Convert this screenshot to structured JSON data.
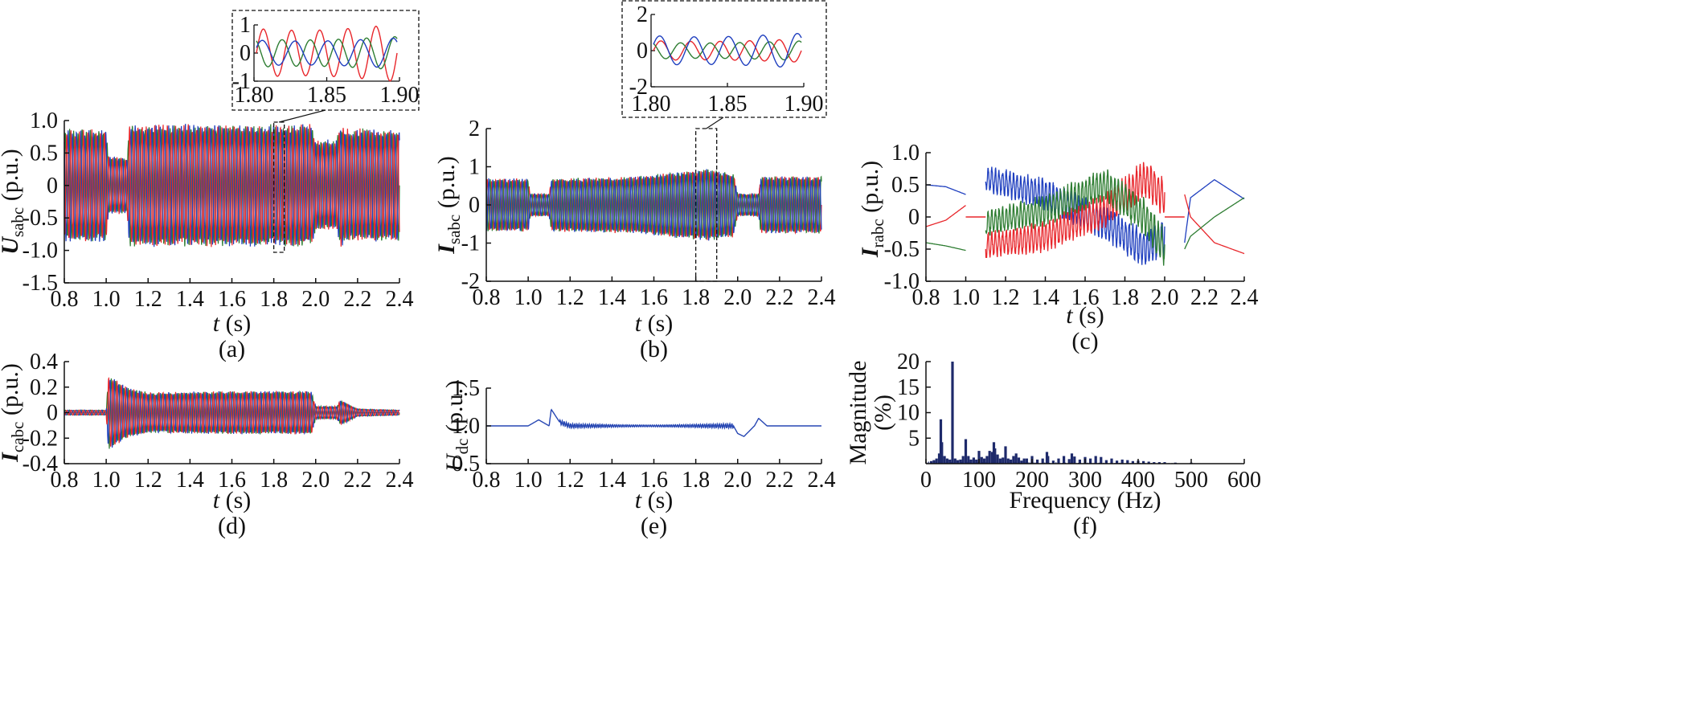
{
  "colors": {
    "phase_a": "#e8262b",
    "phase_b": "#2e7d32",
    "phase_c": "#1f3fbf",
    "dc": "#2747b3",
    "spectrum": "#1e2a6b",
    "axis": "#111111"
  },
  "chart_data": [
    {
      "id": "a",
      "type": "line",
      "caption": "(a)",
      "ylabel_main": "U",
      "ylabel_sub": "sabc",
      "ylabel_unit": " (p.u.)",
      "xlabel_main": "t",
      "xlabel_unit": " (s)",
      "xlim": [
        0.8,
        2.4
      ],
      "ylim": [
        -1.5,
        1.0
      ],
      "xticks": [
        "0.8",
        "1.0",
        "1.2",
        "1.4",
        "1.6",
        "1.8",
        "2.0",
        "2.2",
        "2.4"
      ],
      "yticks": [
        "1.0",
        "0.5",
        "0",
        "-0.5",
        "-1.0",
        "-1.5"
      ],
      "series": [
        {
          "color": "phase_b"
        },
        {
          "color": "phase_c"
        },
        {
          "color": "phase_a"
        }
      ],
      "envelope": [
        [
          0.8,
          0.88
        ],
        [
          1.0,
          0.88
        ],
        [
          1.01,
          0.45
        ],
        [
          1.1,
          0.45
        ],
        [
          1.11,
          0.95
        ],
        [
          1.5,
          0.95
        ],
        [
          1.98,
          0.95
        ],
        [
          2.0,
          0.7
        ],
        [
          2.1,
          0.72
        ],
        [
          2.12,
          0.98
        ],
        [
          2.14,
          0.88
        ],
        [
          2.4,
          0.88
        ]
      ],
      "inset": {
        "xlim": [
          1.8,
          1.9
        ],
        "ylim": [
          -1,
          1
        ],
        "xticks": [
          "1.80",
          "1.85",
          "1.90"
        ],
        "yticks": [
          "1",
          "0",
          "-1"
        ],
        "amplitudes": {
          "phase_a": 0.95,
          "phase_b": 0.55,
          "phase_c": 0.5
        }
      }
    },
    {
      "id": "b",
      "type": "line",
      "caption": "(b)",
      "ylabel_main": "I",
      "ylabel_sub": "sabc",
      "ylabel_unit": " (p.u.)",
      "xlabel_main": "t",
      "xlabel_unit": " (s)",
      "xlim": [
        0.8,
        2.4
      ],
      "ylim": [
        -2,
        2
      ],
      "xticks": [
        "0.8",
        "1.0",
        "1.2",
        "1.4",
        "1.6",
        "1.8",
        "2.0",
        "2.2",
        "2.4"
      ],
      "yticks": [
        "2",
        "1",
        "0",
        "-1",
        "-2"
      ],
      "series": [
        {
          "color": "phase_a"
        },
        {
          "color": "phase_b"
        },
        {
          "color": "phase_c"
        }
      ],
      "envelope": [
        [
          0.8,
          0.7
        ],
        [
          1.0,
          0.7
        ],
        [
          1.01,
          0.3
        ],
        [
          1.1,
          0.3
        ],
        [
          1.11,
          0.7
        ],
        [
          1.5,
          0.75
        ],
        [
          1.85,
          0.95
        ],
        [
          1.98,
          0.85
        ],
        [
          2.0,
          0.3
        ],
        [
          2.1,
          0.3
        ],
        [
          2.11,
          0.75
        ],
        [
          2.4,
          0.75
        ]
      ],
      "inset": {
        "xlim": [
          1.8,
          1.9
        ],
        "ylim": [
          -2,
          2
        ],
        "xticks": [
          "1.80",
          "1.85",
          "1.90"
        ],
        "yticks": [
          "2",
          "0",
          "-2"
        ],
        "amplitudes": {
          "phase_a": 0.6,
          "phase_b": 0.5,
          "phase_c": 0.9
        }
      }
    },
    {
      "id": "c",
      "type": "line",
      "caption": "(c)",
      "ylabel_main": "I",
      "ylabel_sub": "rabc",
      "ylabel_unit": " (p.u.)",
      "xlabel_main": "t",
      "xlabel_unit": " (s)",
      "xlim": [
        0.8,
        2.4
      ],
      "ylim": [
        -1.0,
        1.0
      ],
      "xticks": [
        "0.8",
        "1.0",
        "1.2",
        "1.4",
        "1.6",
        "1.8",
        "2.0",
        "2.2",
        "2.4"
      ],
      "yticks": [
        "1.0",
        "0.5",
        "0",
        "-0.5",
        "-1.0"
      ],
      "series": [
        {
          "color": "phase_c",
          "segment1": [
            [
              0.8,
              0.5
            ],
            [
              0.9,
              0.47
            ],
            [
              1.0,
              0.35
            ]
          ],
          "segment2": [
            [
              1.1,
              0.6
            ],
            [
              1.4,
              0.35
            ],
            [
              1.7,
              -0.1
            ],
            [
              1.9,
              -0.5
            ],
            [
              2.0,
              -0.3
            ]
          ],
          "segment3": [
            [
              2.1,
              -0.4
            ],
            [
              2.13,
              0.3
            ],
            [
              2.25,
              0.58
            ],
            [
              2.4,
              0.28
            ]
          ]
        },
        {
          "color": "phase_a",
          "segment1": [
            [
              0.8,
              -0.15
            ],
            [
              0.9,
              -0.05
            ],
            [
              1.0,
              0.18
            ]
          ],
          "segment2": [
            [
              1.1,
              -0.45
            ],
            [
              1.4,
              -0.3
            ],
            [
              1.7,
              0.1
            ],
            [
              1.9,
              0.6
            ],
            [
              2.0,
              0.3
            ]
          ],
          "segment3": [
            [
              2.1,
              0.35
            ],
            [
              2.13,
              0.0
            ],
            [
              2.25,
              -0.4
            ],
            [
              2.4,
              -0.57
            ]
          ]
        },
        {
          "color": "phase_b",
          "segment1": [
            [
              0.8,
              -0.4
            ],
            [
              0.9,
              -0.45
            ],
            [
              1.0,
              -0.52
            ]
          ],
          "segment2": [
            [
              1.1,
              -0.1
            ],
            [
              1.4,
              0.1
            ],
            [
              1.7,
              0.5
            ],
            [
              1.9,
              0.0
            ],
            [
              2.0,
              -0.5
            ]
          ],
          "segment3": [
            [
              2.1,
              -0.5
            ],
            [
              2.13,
              -0.3
            ],
            [
              2.25,
              0.0
            ],
            [
              2.4,
              0.3
            ]
          ]
        }
      ]
    },
    {
      "id": "d",
      "type": "line",
      "caption": "(d)",
      "ylabel_main": "I",
      "ylabel_sub": "cabc",
      "ylabel_unit": " (p.u.)",
      "xlabel_main": "t",
      "xlabel_unit": " (s)",
      "xlim": [
        0.8,
        2.4
      ],
      "ylim": [
        -0.4,
        0.4
      ],
      "xticks": [
        "0.8",
        "1.0",
        "1.2",
        "1.4",
        "1.6",
        "1.8",
        "2.0",
        "2.2",
        "2.4"
      ],
      "yticks": [
        "0.4",
        "0.2",
        "0",
        "-0.2",
        "-0.4"
      ],
      "series": [
        {
          "color": "phase_b"
        },
        {
          "color": "phase_c"
        },
        {
          "color": "phase_a"
        }
      ],
      "envelope": [
        [
          0.8,
          0.02
        ],
        [
          1.0,
          0.02
        ],
        [
          1.01,
          0.3
        ],
        [
          1.1,
          0.2
        ],
        [
          1.2,
          0.16
        ],
        [
          1.6,
          0.17
        ],
        [
          1.98,
          0.17
        ],
        [
          2.0,
          0.05
        ],
        [
          2.1,
          0.05
        ],
        [
          2.12,
          0.1
        ],
        [
          2.2,
          0.03
        ],
        [
          2.4,
          0.02
        ]
      ]
    },
    {
      "id": "e",
      "type": "line",
      "caption": "(e)",
      "ylabel_main": "U",
      "ylabel_sub": "dc",
      "ylabel_unit": " (p.u.)",
      "xlabel_main": "t",
      "xlabel_unit": " (s)",
      "xlim": [
        0.8,
        2.4
      ],
      "ylim": [
        0.5,
        1.5
      ],
      "xticks": [
        "0.8",
        "1.0",
        "1.2",
        "1.4",
        "1.6",
        "1.8",
        "2.0",
        "2.2",
        "2.4"
      ],
      "yticks": [
        "1.5",
        "1.0",
        "0.5"
      ],
      "series": [
        {
          "color": "dc",
          "base": [
            [
              0.8,
              1.0
            ],
            [
              1.0,
              1.0
            ],
            [
              1.05,
              1.08
            ],
            [
              1.1,
              1.0
            ],
            [
              1.11,
              1.22
            ],
            [
              1.15,
              1.05
            ],
            [
              1.2,
              1.0
            ],
            [
              1.98,
              1.0
            ],
            [
              2.0,
              0.9
            ],
            [
              2.03,
              0.86
            ],
            [
              2.08,
              1.0
            ],
            [
              2.1,
              1.1
            ],
            [
              2.14,
              1.0
            ],
            [
              2.4,
              1.0
            ]
          ],
          "ripple": 0.06
        }
      ]
    },
    {
      "id": "f",
      "type": "bar",
      "caption": "(f)",
      "ylabel": "Magnitude",
      "ylabel2": "(%)",
      "xlabel": "Frequency (Hz)",
      "xlim": [
        0,
        600
      ],
      "ylim": [
        0,
        20
      ],
      "xticks": [
        "0",
        "100",
        "200",
        "300",
        "400",
        "500",
        "600"
      ],
      "yticks": [
        "20",
        "15",
        "10",
        "5"
      ],
      "freqs": [
        10,
        15,
        20,
        25,
        28,
        30,
        35,
        40,
        45,
        50,
        55,
        60,
        65,
        70,
        75,
        80,
        85,
        90,
        95,
        100,
        105,
        110,
        115,
        120,
        125,
        128,
        130,
        135,
        140,
        145,
        150,
        155,
        160,
        165,
        170,
        175,
        180,
        185,
        190,
        200,
        210,
        220,
        228,
        230,
        240,
        250,
        260,
        270,
        275,
        280,
        290,
        300,
        310,
        320,
        330,
        340,
        350,
        360,
        370,
        380,
        390,
        400,
        410,
        420,
        430,
        440,
        450,
        470,
        500
      ],
      "magnitudes": [
        0.5,
        0.7,
        1.0,
        2.0,
        8.7,
        4.2,
        1.5,
        1.0,
        0.8,
        20.0,
        1.0,
        0.7,
        0.8,
        1.5,
        4.8,
        1.5,
        0.8,
        1.2,
        0.8,
        2.5,
        1.3,
        1.0,
        1.5,
        2.5,
        2.3,
        4.2,
        3.0,
        1.8,
        1.0,
        1.2,
        3.4,
        1.0,
        0.8,
        1.5,
        2.0,
        1.2,
        0.6,
        1.0,
        1.0,
        1.5,
        0.8,
        1.0,
        2.3,
        1.5,
        0.6,
        1.0,
        1.5,
        0.9,
        2.0,
        1.4,
        0.8,
        1.3,
        1.0,
        1.5,
        1.3,
        0.7,
        1.0,
        0.6,
        0.8,
        0.7,
        0.5,
        0.6,
        0.5,
        0.4,
        0.3,
        0.3,
        0.3,
        0.2,
        0.2
      ]
    }
  ]
}
